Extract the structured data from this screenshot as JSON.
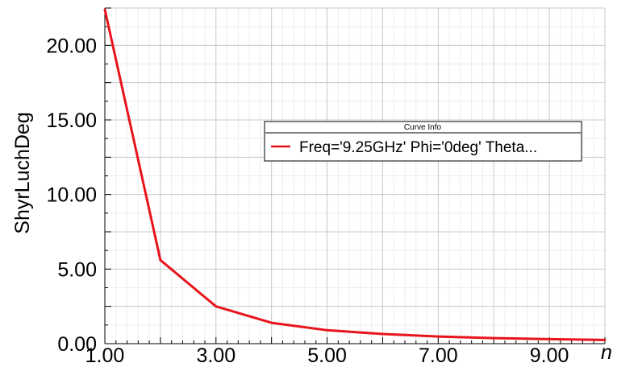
{
  "chart_data": {
    "type": "line",
    "xlabel": "n",
    "ylabel": "ShyrLuchDeg",
    "xlim": [
      1,
      10
    ],
    "ylim": [
      0,
      22.5
    ],
    "x_ticks": [
      "1.00",
      "3.00",
      "5.00",
      "7.00",
      "9.00"
    ],
    "y_ticks": [
      "0.00",
      "5.00",
      "10.00",
      "15.00",
      "20.00"
    ],
    "grid": true,
    "legend": {
      "title": "Curve Info",
      "placement": "right",
      "entries": [
        "Freq='9.25GHz' Phi='0deg' Theta..."
      ]
    },
    "series": [
      {
        "name": "Freq='9.25GHz' Phi='0deg' Theta...",
        "color": "#e8141c",
        "x": [
          1,
          2,
          3,
          4,
          5,
          6,
          7,
          8,
          9,
          10
        ],
        "y": [
          22.4,
          5.6,
          2.5,
          1.4,
          0.9,
          0.65,
          0.48,
          0.37,
          0.3,
          0.25
        ]
      }
    ]
  }
}
